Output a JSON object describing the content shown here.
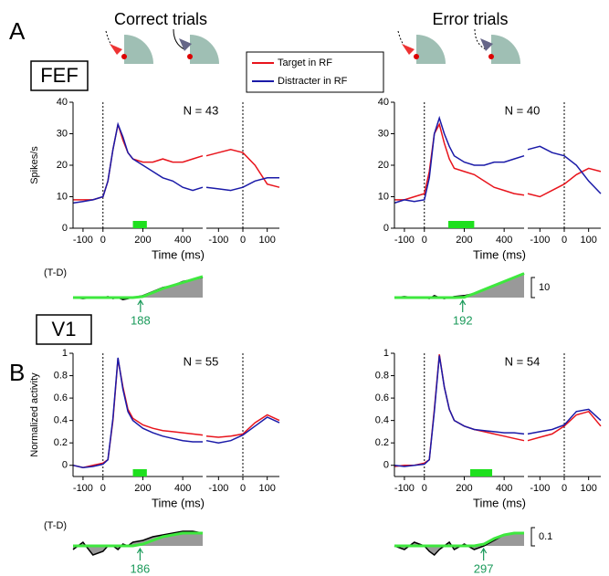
{
  "figure": {
    "letters": [
      "A",
      "B"
    ],
    "column_titles": [
      "Correct trials",
      "Error trials"
    ],
    "areas": [
      "FEF",
      "V1"
    ],
    "legend": [
      {
        "name": "Target in RF",
        "color": "#e8141c"
      },
      {
        "name": "Distracter in RF",
        "color": "#1a1aa8"
      }
    ],
    "diff_label": "(T-D)",
    "scale_bars": [
      10,
      0.1
    ]
  },
  "chart_data": [
    {
      "type": "line",
      "n_label": "N = 43",
      "xlabel": "Time (ms)",
      "ylabel": "Spikes/s",
      "ylim": [
        0,
        40
      ],
      "yticks": [
        0,
        10,
        20,
        30,
        40
      ],
      "stim": {
        "x": [
          -150,
          -100,
          -50,
          0,
          25,
          50,
          75,
          100,
          125,
          150,
          200,
          250,
          300,
          350,
          400,
          450,
          500
        ],
        "xlim": [
          -150,
          500
        ],
        "xticks": [
          -100,
          0,
          200,
          400
        ],
        "series": [
          {
            "color": "#e8141c",
            "values": [
              9,
              9,
              9,
              10,
              15,
              25,
              33,
              28,
              24,
              22,
              21,
              21,
              22,
              21,
              21,
              22,
              23
            ]
          },
          {
            "color": "#1a1aa8",
            "values": [
              8,
              8.5,
              9,
              10,
              15,
              25,
              33,
              29,
              24,
              22,
              20,
              18,
              16,
              15,
              13,
              12,
              13
            ]
          }
        ]
      },
      "sacc": {
        "x": [
          -150,
          -100,
          -50,
          0,
          50,
          100,
          150
        ],
        "xlim": [
          -150,
          150
        ],
        "xticks": [
          -100,
          0,
          100
        ],
        "series": [
          {
            "color": "#e8141c",
            "values": [
              23,
              24,
              25,
              24,
              20,
              14,
              13
            ]
          },
          {
            "color": "#1a1aa8",
            "values": [
              13,
              12.5,
              12,
              13,
              15,
              16,
              16
            ]
          }
        ]
      },
      "sig_bar": [
        150,
        220
      ],
      "diff": {
        "x": [
          -150,
          -100,
          -50,
          0,
          25,
          50,
          75,
          100,
          125,
          150,
          200,
          250,
          300,
          350,
          400,
          450,
          500
        ],
        "values": [
          0,
          -0.5,
          0,
          0,
          0.5,
          -0.5,
          0,
          -1,
          -0.5,
          0,
          1,
          3,
          5,
          6,
          8,
          9,
          10
        ],
        "fit": [
          0,
          0,
          0,
          0,
          0,
          0,
          0,
          0,
          0,
          0,
          0.5,
          2.5,
          4.5,
          6,
          7.5,
          9,
          10.5
        ]
      },
      "latency": 188
    },
    {
      "type": "line",
      "n_label": "N = 40",
      "xlabel": "Time (ms)",
      "ylim": [
        0,
        40
      ],
      "yticks": [
        0,
        10,
        20,
        30,
        40
      ],
      "stim": {
        "x": [
          -150,
          -100,
          -50,
          0,
          25,
          50,
          75,
          100,
          125,
          150,
          200,
          250,
          300,
          350,
          400,
          450,
          500
        ],
        "xlim": [
          -150,
          500
        ],
        "xticks": [
          -100,
          0,
          200,
          400
        ],
        "series": [
          {
            "color": "#e8141c",
            "values": [
              9,
              9,
              10,
              11,
              18,
              30,
              33,
              27,
              22,
              19,
              18,
              17,
              15,
              13,
              12,
              11,
              10.5
            ]
          },
          {
            "color": "#1a1aa8",
            "values": [
              8,
              9,
              8.5,
              9,
              16,
              30,
              35,
              30,
              26,
              23,
              21,
              20,
              20,
              21,
              21,
              22,
              23
            ]
          }
        ]
      },
      "sacc": {
        "x": [
          -150,
          -100,
          -50,
          0,
          50,
          100,
          150
        ],
        "xlim": [
          -150,
          150
        ],
        "xticks": [
          -100,
          0,
          100
        ],
        "series": [
          {
            "color": "#e8141c",
            "values": [
              11,
              10,
              12,
              14,
              17,
              19,
              18
            ]
          },
          {
            "color": "#1a1aa8",
            "values": [
              25,
              26,
              24,
              23,
              20,
              15,
              11
            ]
          }
        ]
      },
      "sig_bar": [
        120,
        250
      ],
      "diff": {
        "x": [
          -150,
          -100,
          -50,
          0,
          25,
          50,
          75,
          100,
          125,
          150,
          200,
          250,
          300,
          350,
          400,
          450,
          500
        ],
        "values": [
          0,
          0.5,
          0,
          0,
          -0.5,
          1,
          0,
          -0.5,
          0,
          0.5,
          1,
          2,
          4,
          6,
          8,
          10,
          12
        ],
        "fit": [
          0,
          0,
          0,
          0,
          0,
          0,
          0,
          0,
          0,
          0,
          0.2,
          2,
          4,
          6,
          8,
          10,
          12
        ]
      },
      "latency": 192
    },
    {
      "type": "line",
      "n_label": "N = 55",
      "xlabel": "Time (ms)",
      "ylabel": "Normalized activity",
      "ylim": [
        -0.1,
        1
      ],
      "yticks": [
        0,
        0.2,
        0.4,
        0.6,
        0.8,
        1
      ],
      "stim": {
        "x": [
          -150,
          -100,
          -50,
          0,
          25,
          50,
          75,
          100,
          125,
          150,
          200,
          250,
          300,
          350,
          400,
          450,
          500
        ],
        "xlim": [
          -150,
          500
        ],
        "xticks": [
          -100,
          0,
          200,
          400
        ],
        "series": [
          {
            "color": "#e8141c",
            "values": [
              0,
              -0.02,
              0,
              0.02,
              0.05,
              0.4,
              0.95,
              0.7,
              0.5,
              0.42,
              0.36,
              0.33,
              0.31,
              0.3,
              0.29,
              0.28,
              0.27
            ]
          },
          {
            "color": "#1a1aa8",
            "values": [
              0,
              -0.02,
              -0.01,
              0.01,
              0.05,
              0.42,
              0.96,
              0.68,
              0.48,
              0.4,
              0.33,
              0.29,
              0.26,
              0.24,
              0.22,
              0.21,
              0.21
            ]
          }
        ]
      },
      "sacc": {
        "x": [
          -150,
          -100,
          -50,
          0,
          50,
          100,
          150
        ],
        "xlim": [
          -150,
          150
        ],
        "xticks": [
          -100,
          0,
          100
        ],
        "series": [
          {
            "color": "#e8141c",
            "values": [
              0.26,
              0.25,
              0.26,
              0.28,
              0.38,
              0.45,
              0.4
            ]
          },
          {
            "color": "#1a1aa8",
            "values": [
              0.22,
              0.2,
              0.22,
              0.27,
              0.35,
              0.43,
              0.38
            ]
          }
        ]
      },
      "sig_bar": [
        150,
        220
      ],
      "diff": {
        "x": [
          -150,
          -100,
          -50,
          0,
          25,
          50,
          75,
          100,
          125,
          150,
          200,
          250,
          300,
          350,
          400,
          450,
          500
        ],
        "values": [
          -0.02,
          0.02,
          -0.05,
          -0.03,
          0,
          0,
          -0.02,
          0.01,
          0,
          0.02,
          0.03,
          0.05,
          0.06,
          0.07,
          0.08,
          0.08,
          0.07
        ],
        "fit": [
          0,
          0,
          0,
          0,
          0,
          0,
          0,
          0,
          0,
          0,
          0.01,
          0.03,
          0.05,
          0.06,
          0.07,
          0.07,
          0.07
        ]
      },
      "latency": 186
    },
    {
      "type": "line",
      "n_label": "N = 54",
      "xlabel": "Time (ms)",
      "ylim": [
        -0.1,
        1
      ],
      "yticks": [
        0,
        0.2,
        0.4,
        0.6,
        0.8,
        1
      ],
      "stim": {
        "x": [
          -150,
          -100,
          -50,
          0,
          25,
          50,
          75,
          100,
          125,
          150,
          200,
          250,
          300,
          350,
          400,
          450,
          500
        ],
        "xlim": [
          -150,
          500
        ],
        "xticks": [
          -100,
          0,
          200,
          400
        ],
        "series": [
          {
            "color": "#e8141c",
            "values": [
              -0.01,
              0,
              0,
              0.02,
              0.05,
              0.5,
              0.99,
              0.7,
              0.5,
              0.4,
              0.35,
              0.32,
              0.3,
              0.28,
              0.26,
              0.24,
              0.22
            ]
          },
          {
            "color": "#1a1aa8",
            "values": [
              0,
              -0.01,
              0,
              0.01,
              0.05,
              0.48,
              0.98,
              0.7,
              0.5,
              0.4,
              0.35,
              0.32,
              0.31,
              0.3,
              0.29,
              0.29,
              0.28
            ]
          }
        ]
      },
      "sacc": {
        "x": [
          -150,
          -100,
          -50,
          0,
          50,
          100,
          150
        ],
        "xlim": [
          -150,
          150
        ],
        "xticks": [
          -100,
          0,
          100
        ],
        "series": [
          {
            "color": "#e8141c",
            "values": [
              0.22,
              0.25,
              0.28,
              0.35,
              0.45,
              0.48,
              0.35
            ]
          },
          {
            "color": "#1a1aa8",
            "values": [
              0.28,
              0.3,
              0.32,
              0.36,
              0.48,
              0.5,
              0.4
            ]
          }
        ]
      },
      "sig_bar": [
        230,
        340
      ],
      "diff": {
        "x": [
          -150,
          -100,
          -50,
          0,
          25,
          50,
          75,
          100,
          125,
          150,
          200,
          250,
          300,
          350,
          400,
          450,
          500
        ],
        "values": [
          0,
          -0.02,
          0.02,
          0,
          -0.03,
          -0.05,
          -0.02,
          0,
          0.02,
          -0.02,
          0.01,
          -0.02,
          0,
          0.03,
          0.06,
          0.07,
          0.07
        ],
        "fit": [
          0,
          0,
          0,
          0,
          0,
          0,
          0,
          0,
          0,
          0,
          0,
          0,
          0.01,
          0.04,
          0.06,
          0.07,
          0.07
        ]
      },
      "latency": 297
    }
  ]
}
